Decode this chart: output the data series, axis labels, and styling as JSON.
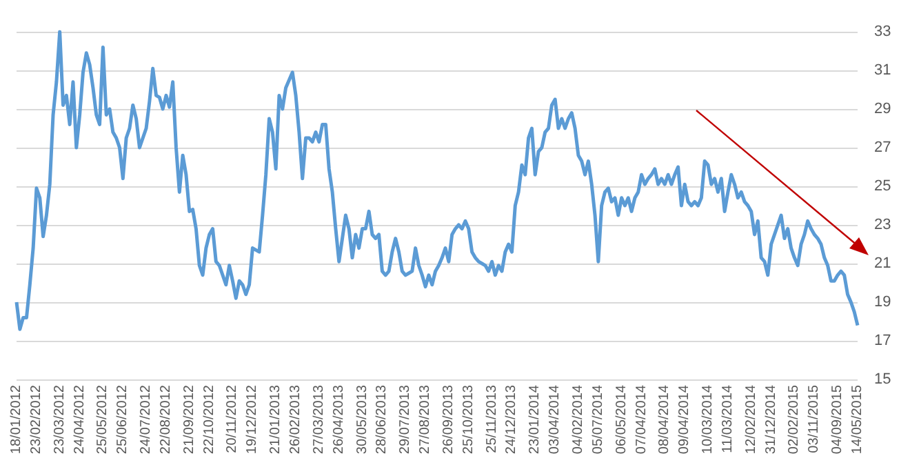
{
  "chart_data": {
    "type": "line",
    "categories": [
      "18/01/2012",
      null,
      null,
      null,
      null,
      null,
      "23/02/2012",
      null,
      null,
      null,
      null,
      null,
      null,
      "23/03/2012",
      null,
      null,
      null,
      null,
      null,
      "24/04/2012",
      null,
      null,
      null,
      null,
      null,
      null,
      "25/05/2012",
      null,
      null,
      null,
      null,
      null,
      "25/06/2012",
      null,
      null,
      null,
      null,
      null,
      null,
      "24/07/2012",
      null,
      null,
      null,
      null,
      null,
      "22/08/2012",
      null,
      null,
      null,
      null,
      null,
      null,
      "21/09/2012",
      null,
      null,
      null,
      null,
      null,
      "22/10/2012",
      null,
      null,
      null,
      null,
      null,
      null,
      "20/11/2012",
      null,
      null,
      null,
      null,
      null,
      "19/12/2012",
      null,
      null,
      null,
      null,
      null,
      null,
      "21/01/2013",
      null,
      null,
      null,
      null,
      null,
      "26/02/2013",
      null,
      null,
      null,
      null,
      null,
      null,
      "27/03/2013",
      null,
      null,
      null,
      null,
      null,
      "26/04/2013",
      null,
      null,
      null,
      null,
      null,
      null,
      "30/05/2013",
      null,
      null,
      null,
      null,
      null,
      "28/06/2013",
      null,
      null,
      null,
      null,
      null,
      null,
      "29/07/2013",
      null,
      null,
      null,
      null,
      null,
      "27/08/2013",
      null,
      null,
      null,
      null,
      null,
      null,
      "26/09/2013",
      null,
      null,
      null,
      null,
      null,
      "25/10/2013",
      null,
      null,
      null,
      null,
      null,
      null,
      "25/11/2013",
      null,
      null,
      null,
      null,
      null,
      "24/12/2013",
      null,
      null,
      null,
      null,
      null,
      null,
      "23/01/2014",
      null,
      null,
      null,
      null,
      null,
      "03/04/2014",
      null,
      null,
      null,
      null,
      null,
      null,
      "04/02/2014",
      null,
      null,
      null,
      null,
      null,
      "05/07/2014",
      null,
      null,
      null,
      null,
      null,
      null,
      "06/05/2014",
      null,
      null,
      null,
      null,
      null,
      "07/04/2014",
      null,
      null,
      null,
      null,
      null,
      null,
      "08/04/2014",
      null,
      null,
      null,
      null,
      null,
      "09/04/2014",
      null,
      null,
      null,
      null,
      null,
      null,
      "10/03/2014",
      null,
      null,
      null,
      null,
      null,
      "11/03/2014",
      null,
      null,
      null,
      null,
      null,
      null,
      "12/02/2014",
      null,
      null,
      null,
      null,
      null,
      "31/12/2014",
      null,
      null,
      null,
      null,
      null,
      null,
      "02/02/2015",
      null,
      null,
      null,
      null,
      null,
      "03/11/2015",
      null,
      null,
      null,
      null,
      null,
      null,
      "04/09/2015",
      null,
      null,
      null,
      null,
      null,
      "14/05/2015"
    ],
    "values": [
      19.0,
      17.6,
      18.2,
      18.2,
      19.9,
      21.8,
      24.9,
      24.4,
      22.4,
      23.5,
      25.1,
      28.7,
      30.4,
      33.0,
      29.2,
      29.7,
      28.2,
      30.4,
      27.0,
      28.7,
      30.9,
      31.9,
      31.3,
      30.1,
      28.7,
      28.2,
      32.2,
      28.7,
      29.0,
      27.8,
      27.5,
      27.0,
      25.4,
      27.5,
      28.0,
      29.2,
      28.5,
      27.0,
      27.5,
      28.0,
      29.4,
      31.1,
      29.7,
      29.6,
      29.0,
      29.7,
      29.1,
      30.4,
      27.0,
      24.7,
      26.6,
      25.6,
      23.7,
      23.8,
      22.8,
      20.9,
      20.4,
      21.8,
      22.5,
      22.8,
      21.1,
      20.9,
      20.4,
      19.9,
      20.9,
      20.1,
      19.2,
      20.1,
      19.9,
      19.4,
      19.9,
      21.8,
      21.7,
      21.6,
      23.5,
      25.6,
      28.5,
      27.8,
      25.9,
      29.7,
      29.0,
      30.1,
      30.5,
      30.9,
      29.7,
      27.8,
      25.4,
      27.5,
      27.5,
      27.3,
      27.8,
      27.3,
      28.2,
      28.2,
      25.9,
      24.7,
      22.8,
      21.1,
      22.3,
      23.5,
      22.8,
      21.3,
      22.5,
      21.8,
      22.8,
      22.8,
      23.7,
      22.5,
      22.3,
      22.5,
      20.6,
      20.4,
      20.6,
      21.6,
      22.3,
      21.6,
      20.6,
      20.4,
      20.5,
      20.6,
      21.8,
      20.9,
      20.4,
      19.8,
      20.4,
      19.9,
      20.6,
      20.9,
      21.3,
      21.8,
      21.1,
      22.5,
      22.8,
      23.0,
      22.8,
      23.2,
      22.8,
      21.6,
      21.3,
      21.1,
      21.0,
      20.9,
      20.6,
      21.1,
      20.4,
      20.9,
      20.6,
      21.6,
      22.0,
      21.6,
      24.0,
      24.7,
      26.1,
      25.6,
      27.5,
      28.0,
      25.6,
      26.8,
      27.0,
      27.8,
      28.0,
      29.2,
      29.5,
      28.0,
      28.5,
      28.0,
      28.5,
      28.8,
      28.0,
      26.6,
      26.3,
      25.6,
      26.3,
      25.1,
      23.5,
      21.1,
      24.0,
      24.7,
      24.9,
      24.2,
      24.4,
      23.5,
      24.4,
      24.0,
      24.4,
      23.7,
      24.4,
      24.7,
      25.6,
      25.1,
      25.4,
      25.6,
      25.9,
      25.1,
      25.4,
      25.1,
      25.6,
      25.1,
      25.6,
      26.0,
      24.0,
      25.1,
      24.2,
      24.0,
      24.2,
      24.0,
      24.4,
      26.3,
      26.1,
      25.1,
      25.4,
      24.7,
      25.4,
      23.7,
      24.7,
      25.6,
      25.1,
      24.4,
      24.7,
      24.2,
      24.0,
      23.7,
      22.5,
      23.2,
      21.3,
      21.1,
      20.4,
      22.0,
      22.5,
      23.0,
      23.5,
      22.3,
      22.8,
      21.8,
      21.3,
      20.9,
      22.0,
      22.5,
      23.2,
      22.8,
      22.5,
      22.3,
      22.0,
      21.3,
      20.9,
      20.1,
      20.1,
      20.4,
      20.6,
      20.4,
      19.4,
      19.0,
      18.5,
      17.8
    ],
    "color": "#5b9bd5",
    "ylim": [
      15,
      33
    ],
    "yticks": [
      15,
      17,
      19,
      21,
      23,
      25,
      27,
      29,
      31,
      33
    ],
    "grid": "y",
    "marker": "none"
  }
}
